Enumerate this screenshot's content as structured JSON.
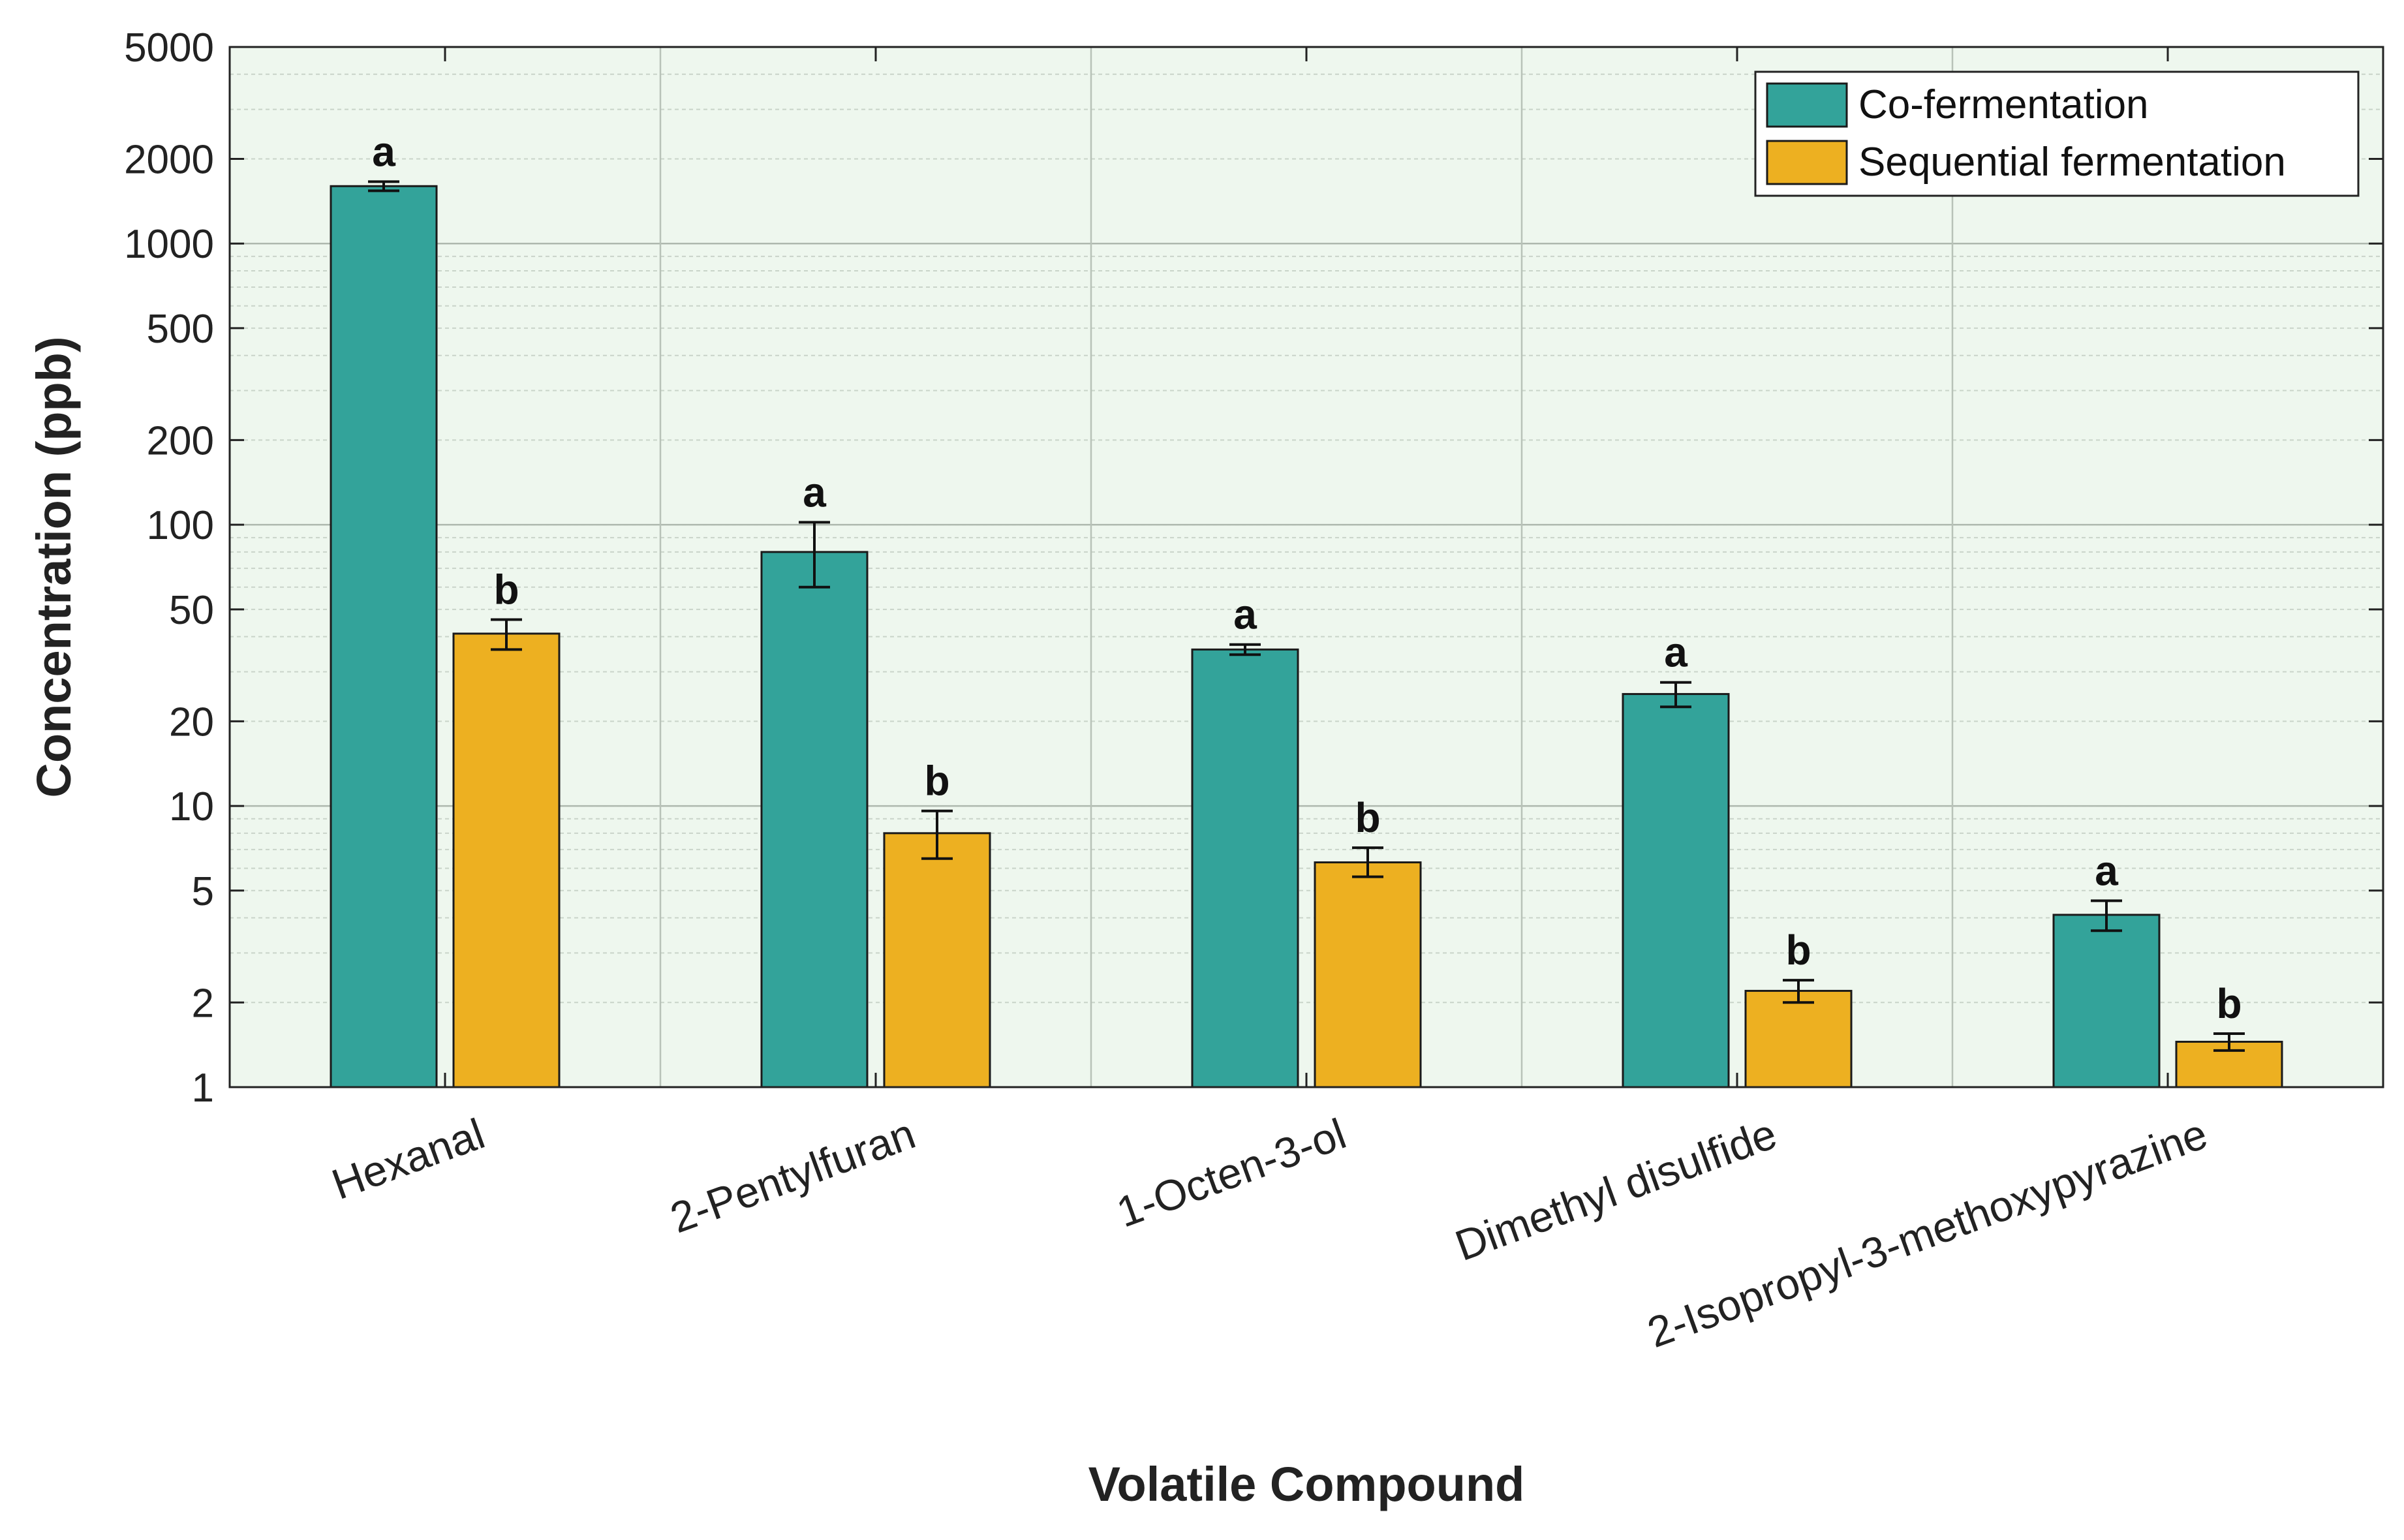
{
  "chart_data": {
    "type": "bar",
    "xlabel": "Volatile Compound",
    "ylabel": "Concentration (ppb)",
    "yscale": "log",
    "ylim": [
      1,
      5000
    ],
    "yticks": [
      "1",
      "2",
      "5",
      "10",
      "20",
      "50",
      "100",
      "200",
      "500",
      "1000",
      "2000",
      "5000"
    ],
    "grid": true,
    "legend_position": "top-right",
    "categories": [
      "Hexanal",
      "2-Pentylfuran",
      "1-Octen-3-ol",
      "Dimethyl disulfide",
      "2-Isopropyl-3-methoxypyrazine"
    ],
    "series": [
      {
        "name": "Co-fermentation",
        "color": "#33a39a",
        "values": [
          1600,
          80,
          36,
          25,
          4.1
        ],
        "err_low": [
          1540,
          60,
          34.5,
          22.5,
          3.6
        ],
        "err_high": [
          1660,
          102,
          37.5,
          27.5,
          4.6
        ],
        "labels": [
          "a",
          "a",
          "a",
          "a",
          "a"
        ]
      },
      {
        "name": "Sequential fermentation",
        "color": "#edb021",
        "values": [
          41,
          8.0,
          6.3,
          2.2,
          1.45
        ],
        "err_low": [
          36,
          6.5,
          5.6,
          2.0,
          1.35
        ],
        "err_high": [
          46,
          9.6,
          7.1,
          2.4,
          1.55
        ],
        "labels": [
          "b",
          "b",
          "b",
          "b",
          "b"
        ]
      }
    ]
  }
}
